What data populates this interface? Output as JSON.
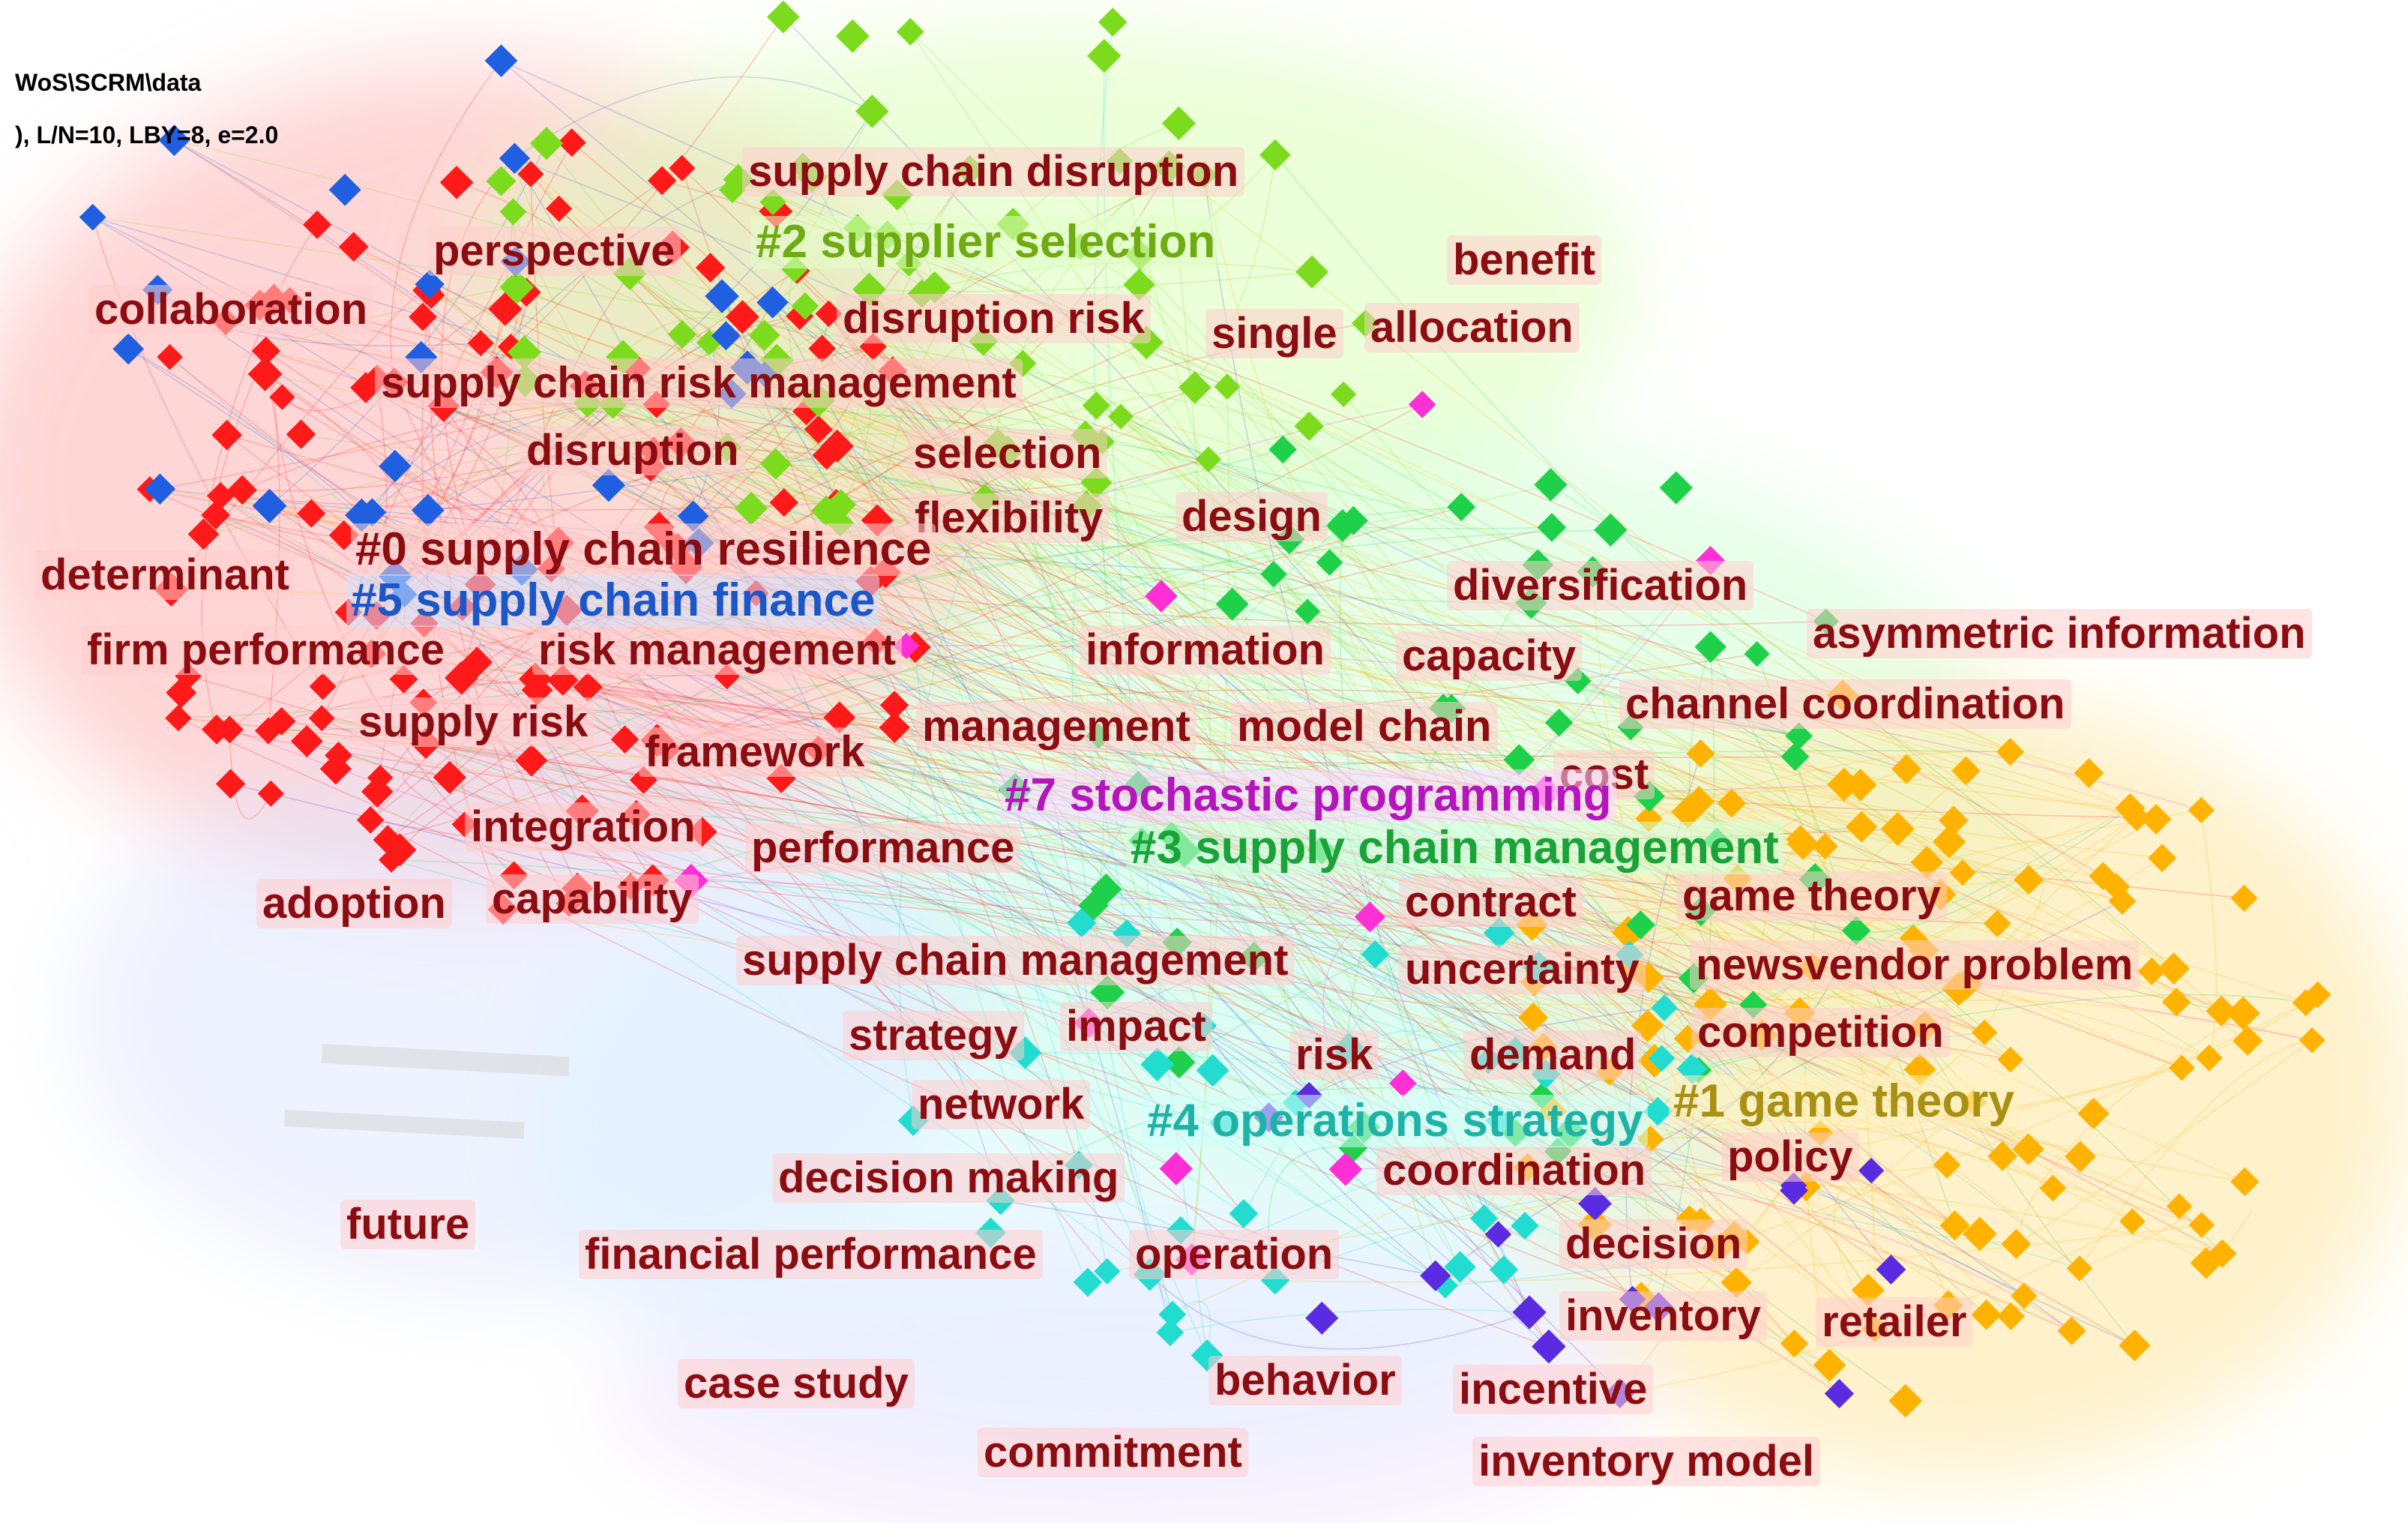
{
  "header": {
    "path_line": "WoS\\SCRM\\data",
    "params_line": "), L/N=10, LBY=8, e=2.0"
  },
  "colors": {
    "keyword_label": "#8b0d12",
    "cluster0": "#ff1a1a",
    "cluster1": "#ffb300",
    "cluster2": "#7ddb1e",
    "cluster3": "#1fd14a",
    "cluster4": "#22dcd0",
    "cluster5": "#1f5fe0",
    "cluster6": "#5a2be0",
    "cluster7": "#ff2fd6"
  },
  "clusters": [
    {
      "label": "#0 supply chain resilience",
      "color": "#8b0d12"
    },
    {
      "label": "#1 game theory",
      "color": "#a89014"
    },
    {
      "label": "#2 supplier selection",
      "color": "#6fab12"
    },
    {
      "label": "#3 supply chain management",
      "color": "#19a338"
    },
    {
      "label": "#4 operations strategy",
      "color": "#1fb3a8"
    },
    {
      "label": "#5 supply chain finance",
      "color": "#1c57c7"
    },
    {
      "label": "#7 stochastic programming",
      "color": "#b415bd"
    }
  ],
  "keywords": [
    "supply chain disruption",
    "perspective",
    "benefit",
    "collaboration",
    "disruption risk",
    "single",
    "allocation",
    "supply chain risk management",
    "disruption",
    "selection",
    "flexibility",
    "design",
    "determinant",
    "diversification",
    "asymmetric information",
    "firm performance",
    "risk management",
    "information",
    "capacity",
    "supply risk",
    "management",
    "model",
    "chain",
    "channel coordination",
    "framework",
    "cost",
    "integration",
    "performance",
    "adoption",
    "capability",
    "contract",
    "game theory",
    "supply chain management",
    "uncertainty",
    "newsvendor problem",
    "strategy",
    "impact",
    "risk",
    "demand",
    "competition",
    "network",
    "decision making",
    "coordination",
    "policy",
    "future",
    "financial performance",
    "operation",
    "decision",
    "inventory",
    "retailer",
    "case study",
    "behavior",
    "incentive",
    "commitment",
    "inventory model"
  ]
}
